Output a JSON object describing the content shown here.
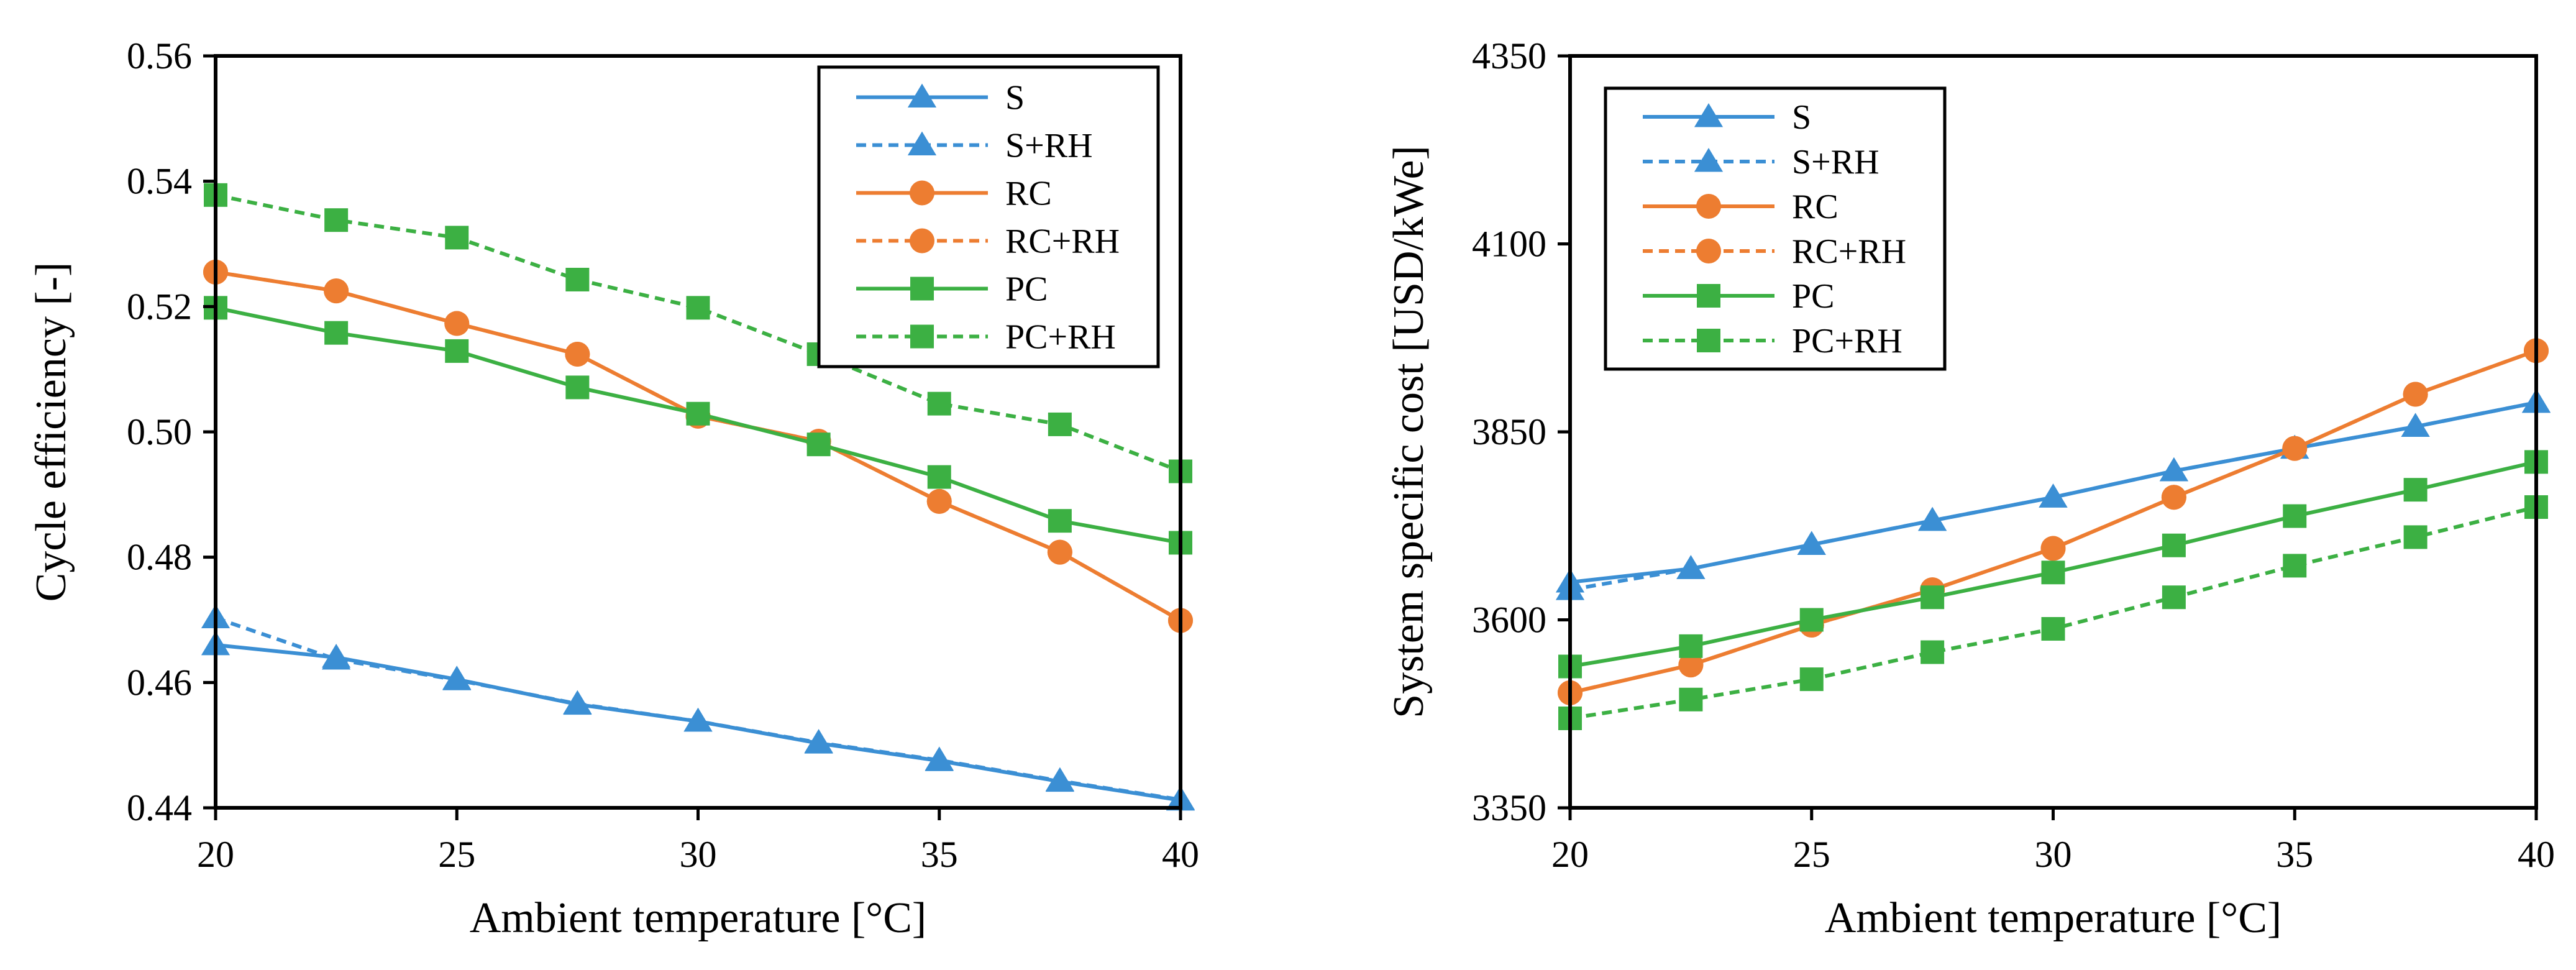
{
  "chart_data": [
    {
      "type": "line",
      "id": "efficiency",
      "title": "",
      "xlabel": "Ambient temperature [°C]",
      "ylabel": "Cycle efficiency [-]",
      "xlim": [
        20,
        40
      ],
      "ylim": [
        0.44,
        0.56
      ],
      "xticks": [
        20,
        25,
        30,
        35,
        40
      ],
      "yticks": [
        0.44,
        0.46,
        0.48,
        0.5,
        0.52,
        0.54,
        0.56
      ],
      "ytick_decimals": 2,
      "legend_position": "top-right",
      "x": [
        20,
        22.5,
        25,
        27.5,
        30,
        32.5,
        35,
        37.5,
        40
      ],
      "series": [
        {
          "name": "S",
          "color": "#3B8FD4",
          "dash": "solid",
          "marker": "triangle",
          "values": [
            0.466,
            0.464,
            0.4605,
            0.4565,
            0.4538,
            0.4503,
            0.4475,
            0.4442,
            0.4412
          ]
        },
        {
          "name": "S+RH",
          "color": "#3B8FD4",
          "dash": "dashed",
          "marker": "triangle",
          "values": [
            0.4703,
            0.4637,
            0.4604,
            0.4566,
            0.4538,
            0.4504,
            0.4476,
            0.4443,
            0.4413
          ]
        },
        {
          "name": "RC",
          "color": "#ED7D31",
          "dash": "solid",
          "marker": "circle",
          "values": [
            0.5255,
            0.5225,
            0.5173,
            0.5124,
            0.5025,
            0.4985,
            0.4889,
            0.4808,
            0.4699
          ]
        },
        {
          "name": "RC+RH",
          "color": "#ED7D31",
          "dash": "dashed",
          "marker": "circle",
          "values": [
            0.5255,
            0.5225,
            0.5173,
            0.5124,
            0.5025,
            0.4985,
            0.4889,
            0.4808,
            0.4699
          ]
        },
        {
          "name": "PC",
          "color": "#3CB043",
          "dash": "solid",
          "marker": "square",
          "values": [
            0.5198,
            0.5158,
            0.5129,
            0.5071,
            0.5029,
            0.498,
            0.4928,
            0.4858,
            0.4823
          ]
        },
        {
          "name": "PC+RH",
          "color": "#3CB043",
          "dash": "dashed",
          "marker": "square",
          "values": [
            0.5378,
            0.5338,
            0.531,
            0.5243,
            0.5198,
            0.5124,
            0.5045,
            0.5012,
            0.4937
          ]
        }
      ]
    },
    {
      "type": "line",
      "id": "cost",
      "title": "",
      "xlabel": "Ambient temperature [°C]",
      "ylabel": "System specific cost [USD/kWe]",
      "xlim": [
        20,
        40
      ],
      "ylim": [
        3350,
        4350
      ],
      "xticks": [
        20,
        25,
        30,
        35,
        40
      ],
      "yticks": [
        3350,
        3600,
        3850,
        4100,
        4350
      ],
      "ytick_decimals": 0,
      "legend_position": "top-left",
      "x": [
        20,
        22.5,
        25,
        27.5,
        30,
        32.5,
        35,
        37.5,
        40
      ],
      "series": [
        {
          "name": "S",
          "color": "#3B8FD4",
          "dash": "solid",
          "marker": "triangle",
          "values": [
            3650,
            3668,
            3700,
            3732,
            3763,
            3798,
            3828,
            3857,
            3889
          ]
        },
        {
          "name": "S+RH",
          "color": "#3B8FD4",
          "dash": "dashed",
          "marker": "triangle",
          "values": [
            3640,
            3668,
            3700,
            3732,
            3763,
            3798,
            3828,
            3857,
            3889
          ]
        },
        {
          "name": "RC",
          "color": "#ED7D31",
          "dash": "solid",
          "marker": "circle",
          "values": [
            3503,
            3540,
            3593,
            3640,
            3695,
            3763,
            3828,
            3900,
            3958
          ]
        },
        {
          "name": "RC+RH",
          "color": "#ED7D31",
          "dash": "dashed",
          "marker": "circle",
          "values": [
            3503,
            3540,
            3593,
            3640,
            3695,
            3763,
            3828,
            3900,
            3958
          ]
        },
        {
          "name": "PC",
          "color": "#3CB043",
          "dash": "solid",
          "marker": "square",
          "values": [
            3538,
            3565,
            3600,
            3630,
            3663,
            3699,
            3738,
            3773,
            3810
          ]
        },
        {
          "name": "PC+RH",
          "color": "#3CB043",
          "dash": "dashed",
          "marker": "square",
          "values": [
            3469,
            3494,
            3521,
            3557,
            3588,
            3630,
            3672,
            3710,
            3750
          ]
        }
      ]
    }
  ]
}
